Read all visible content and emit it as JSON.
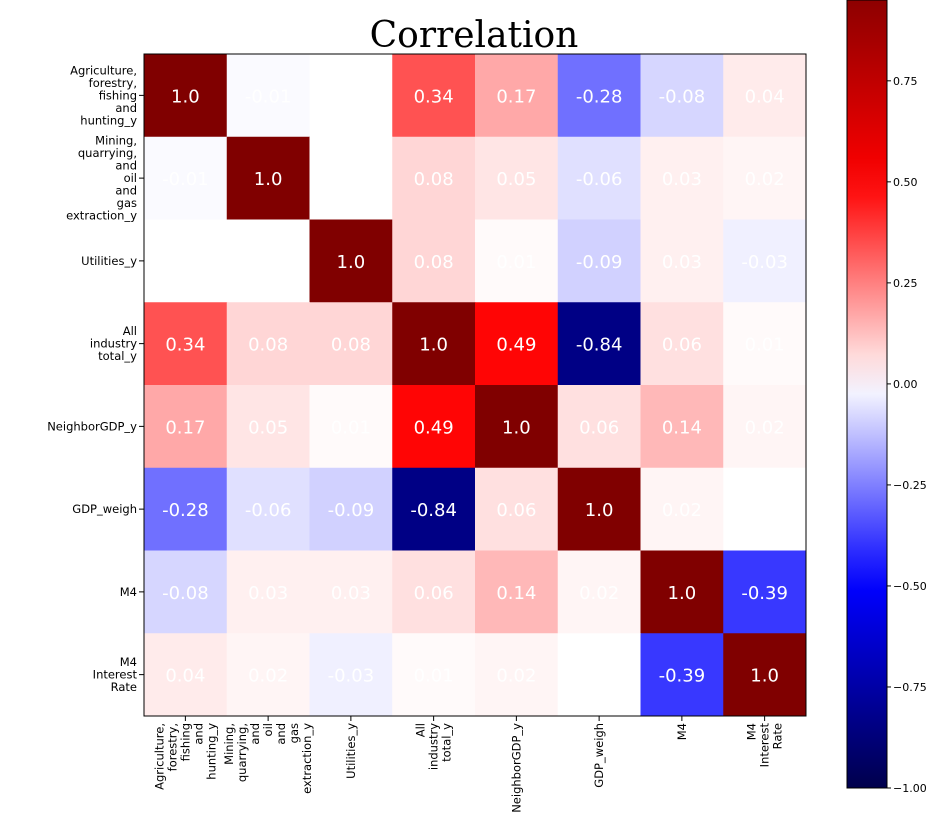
{
  "chart_data": {
    "type": "heatmap",
    "title": "Correlation",
    "row_labels": [
      [
        "Agriculture,",
        "forestry,",
        "fishing",
        "and",
        "hunting_y"
      ],
      [
        "Mining,",
        "quarrying,",
        "and",
        "oil",
        "and",
        "gas",
        "extraction_y"
      ],
      [
        "Utilities_y"
      ],
      [
        "All",
        "industry",
        "total_y"
      ],
      [
        "NeighborGDP_y"
      ],
      [
        "GDP_weigh"
      ],
      [
        "M4"
      ],
      [
        "M4",
        "Interest",
        "Rate"
      ]
    ],
    "col_labels": [
      [
        "Agriculture,",
        "forestry,",
        "fishing",
        "and",
        "hunting_y"
      ],
      [
        "Mining,",
        "quarrying,",
        "and",
        "oil",
        "and",
        "gas",
        "extraction_y"
      ],
      [
        "Utilities_y"
      ],
      [
        "All",
        "industry",
        "total_y"
      ],
      [
        "NeighborGDP_y"
      ],
      [
        "GDP_weigh"
      ],
      [
        "M4"
      ],
      [
        "M4",
        "Interest",
        "Rate"
      ]
    ],
    "values": [
      [
        1.0,
        -0.01,
        0.0,
        0.34,
        0.17,
        -0.28,
        -0.08,
        0.04
      ],
      [
        -0.01,
        1.0,
        0.0,
        0.08,
        0.05,
        -0.06,
        0.03,
        0.02
      ],
      [
        0.0,
        0.0,
        1.0,
        0.08,
        0.01,
        -0.09,
        0.03,
        -0.03
      ],
      [
        0.34,
        0.08,
        0.08,
        1.0,
        0.49,
        -0.84,
        0.06,
        0.01
      ],
      [
        0.17,
        0.05,
        0.01,
        0.49,
        1.0,
        0.06,
        0.14,
        0.02
      ],
      [
        -0.28,
        -0.06,
        -0.09,
        -0.84,
        0.06,
        1.0,
        0.02,
        0.0
      ],
      [
        -0.08,
        0.03,
        0.03,
        0.06,
        0.14,
        0.02,
        1.0,
        -0.39
      ],
      [
        0.04,
        0.02,
        -0.03,
        0.01,
        0.02,
        0.0,
        -0.39,
        1.0
      ]
    ],
    "cell_labels": [
      [
        "1.0",
        "-0.01",
        "",
        "0.34",
        "0.17",
        "-0.28",
        "-0.08",
        "0.04"
      ],
      [
        "-0.01",
        "1.0",
        "",
        "0.08",
        "0.05",
        "-0.06",
        "0.03",
        "0.02"
      ],
      [
        "",
        "",
        "1.0",
        "0.08",
        "0.01",
        "-0.09",
        "0.03",
        "-0.03"
      ],
      [
        "0.34",
        "0.08",
        "0.08",
        "1.0",
        "0.49",
        "-0.84",
        "0.06",
        "0.01"
      ],
      [
        "0.17",
        "0.05",
        "0.01",
        "0.49",
        "1.0",
        "0.06",
        "0.14",
        "0.02"
      ],
      [
        "-0.28",
        "-0.06",
        "-0.09",
        "-0.84",
        "0.06",
        "1.0",
        "0.02",
        ""
      ],
      [
        "-0.08",
        "0.03",
        "0.03",
        "0.06",
        "0.14",
        "0.02",
        "1.0",
        "-0.39"
      ],
      [
        "0.04",
        "0.02",
        "-0.03",
        "0.01",
        "0.02",
        "",
        "-0.39",
        "1.0"
      ]
    ],
    "colormap": "seismic",
    "value_range": [
      -1.0,
      1.0
    ],
    "colorbar": {
      "ticks": [
        -1.0,
        -0.75,
        -0.5,
        -0.25,
        0.0,
        0.25,
        0.5,
        0.75
      ],
      "tick_labels": [
        "−1.00",
        "−0.75",
        "−0.50",
        "−0.25",
        "0.00",
        "0.25",
        "0.50",
        "0.75"
      ],
      "range": [
        -1.0,
        0.95
      ]
    },
    "cell_text_color": "#ffffff"
  }
}
